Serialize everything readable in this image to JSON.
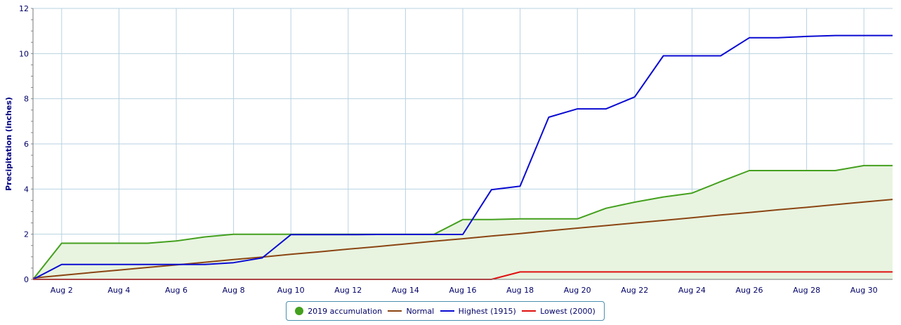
{
  "chart_data": {
    "type": "line",
    "title": "",
    "xlabel": "",
    "ylabel": "Precipitation (inches)",
    "ylim": [
      0,
      12
    ],
    "xlim": [
      1,
      31
    ],
    "yticks": [
      0,
      2,
      4,
      6,
      8,
      10,
      12
    ],
    "xticks": [
      {
        "day": 2,
        "label": "Aug 2"
      },
      {
        "day": 4,
        "label": "Aug 4"
      },
      {
        "day": 6,
        "label": "Aug 6"
      },
      {
        "day": 8,
        "label": "Aug 8"
      },
      {
        "day": 10,
        "label": "Aug 10"
      },
      {
        "day": 12,
        "label": "Aug 12"
      },
      {
        "day": 14,
        "label": "Aug 14"
      },
      {
        "day": 16,
        "label": "Aug 16"
      },
      {
        "day": 18,
        "label": "Aug 18"
      },
      {
        "day": 20,
        "label": "Aug 20"
      },
      {
        "day": 22,
        "label": "Aug 22"
      },
      {
        "day": 24,
        "label": "Aug 24"
      },
      {
        "day": 26,
        "label": "Aug 26"
      },
      {
        "day": 28,
        "label": "Aug 28"
      },
      {
        "day": 30,
        "label": "Aug 30"
      }
    ],
    "grid": true,
    "legend_position": "bottom-center",
    "x": [
      1,
      2,
      3,
      4,
      5,
      6,
      7,
      8,
      9,
      10,
      11,
      12,
      13,
      14,
      15,
      16,
      17,
      18,
      19,
      20,
      21,
      22,
      23,
      24,
      25,
      26,
      27,
      28,
      29,
      30,
      31
    ],
    "series": [
      {
        "name": "2019 accumulation",
        "color": "#44a01e",
        "fill": "#e8f4e0",
        "style": "area",
        "values": [
          0,
          1.6,
          1.6,
          1.6,
          1.6,
          1.7,
          1.88,
          2.0,
          2.0,
          2.0,
          2.0,
          2.0,
          2.0,
          2.0,
          2.0,
          2.65,
          2.65,
          2.68,
          2.68,
          2.68,
          3.15,
          3.42,
          3.65,
          3.82,
          4.33,
          4.82,
          4.82,
          4.82,
          4.82,
          5.04,
          5.04
        ]
      },
      {
        "name": "Normal",
        "color": "#8b4513",
        "style": "line",
        "values": [
          0.06,
          0.18,
          0.3,
          0.41,
          0.53,
          0.64,
          0.76,
          0.88,
          0.99,
          1.11,
          1.22,
          1.34,
          1.45,
          1.57,
          1.69,
          1.8,
          1.92,
          2.03,
          2.15,
          2.27,
          2.38,
          2.5,
          2.61,
          2.73,
          2.85,
          2.96,
          3.08,
          3.19,
          3.31,
          3.43,
          3.54
        ]
      },
      {
        "name": "Highest (1915)",
        "color": "#0a0ad2",
        "style": "line",
        "values": [
          0,
          0.66,
          0.66,
          0.66,
          0.66,
          0.66,
          0.66,
          0.74,
          0.95,
          1.98,
          1.98,
          1.98,
          1.99,
          1.99,
          1.99,
          1.99,
          3.97,
          4.13,
          7.18,
          7.55,
          7.55,
          8.08,
          9.9,
          9.9,
          9.9,
          10.7,
          10.7,
          10.76,
          10.8,
          10.8,
          10.8
        ]
      },
      {
        "name": "Lowest (2000)",
        "color": "#e01010",
        "style": "line",
        "values": [
          0,
          0,
          0,
          0,
          0,
          0,
          0,
          0,
          0,
          0,
          0,
          0,
          0,
          0,
          0,
          0,
          0,
          0.33,
          0.33,
          0.33,
          0.33,
          0.33,
          0.33,
          0.33,
          0.33,
          0.33,
          0.33,
          0.33,
          0.33,
          0.33,
          0.33
        ]
      }
    ]
  }
}
